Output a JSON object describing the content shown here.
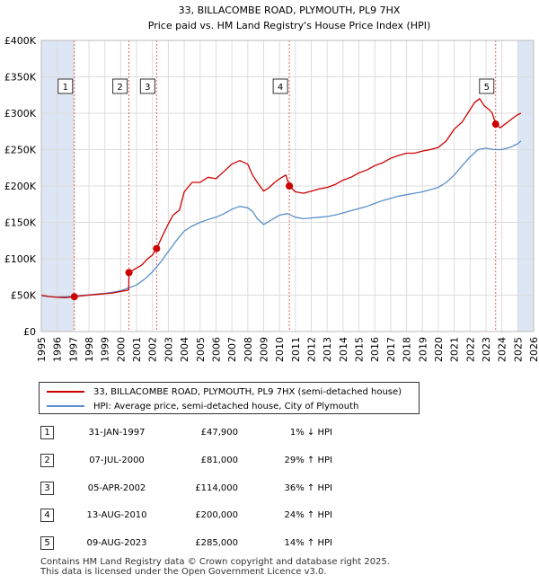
{
  "title_line1": "33, BILLACOMBE ROAD, PLYMOUTH, PL9 7HX",
  "title_line2": "Price paid vs. HM Land Registry's House Price Index (HPI)",
  "legend": {
    "property_label": "33, BILLACOMBE ROAD, PLYMOUTH, PL9 7HX (semi-detached house)",
    "hpi_label": "HPI: Average price, semi-detached house, City of Plymouth"
  },
  "sales": [
    {
      "num": "1",
      "date": "31-JAN-1997",
      "price": "£47,900",
      "hpi": "1% ↓ HPI"
    },
    {
      "num": "2",
      "date": "07-JUL-2000",
      "price": "£81,000",
      "hpi": "29% ↑ HPI"
    },
    {
      "num": "3",
      "date": "05-APR-2002",
      "price": "£114,000",
      "hpi": "36% ↑ HPI"
    },
    {
      "num": "4",
      "date": "13-AUG-2010",
      "price": "£200,000",
      "hpi": "24% ↑ HPI"
    },
    {
      "num": "5",
      "date": "09-AUG-2023",
      "price": "£285,000",
      "hpi": "14% ↑ HPI"
    }
  ],
  "footer_line1": "Contains HM Land Registry data © Crown copyright and database right 2025.",
  "footer_line2": "This data is licensed under the Open Government Licence v3.0.",
  "colors": {
    "property": "#cc0000",
    "hpi": "#5b8fc9",
    "band": "#dde6f4",
    "grid": "#dddddd"
  },
  "chart_data": {
    "type": "line",
    "title": "33, BILLACOMBE ROAD, PLYMOUTH, PL9 7HX — Price paid vs. HM Land Registry's House Price Index (HPI)",
    "xlim": [
      1995,
      2026
    ],
    "ylim": [
      0,
      400000
    ],
    "x_ticks": [
      1995,
      1996,
      1997,
      1998,
      1999,
      2000,
      2001,
      2002,
      2003,
      2004,
      2005,
      2006,
      2007,
      2008,
      2009,
      2010,
      2011,
      2012,
      2013,
      2014,
      2015,
      2016,
      2017,
      2018,
      2019,
      2020,
      2021,
      2022,
      2023,
      2024,
      2025,
      2026
    ],
    "y_ticks": [
      0,
      50000,
      100000,
      150000,
      200000,
      250000,
      300000,
      350000,
      400000
    ],
    "y_tick_labels": [
      "£0",
      "£50K",
      "£100K",
      "£150K",
      "£200K",
      "£250K",
      "£300K",
      "£350K",
      "£400K"
    ],
    "highlight_bands": [
      [
        1995,
        1997.08
      ],
      [
        2025.0,
        2026
      ]
    ],
    "sale_points": [
      {
        "label": "1",
        "x": 1997.08,
        "y": 47900
      },
      {
        "label": "2",
        "x": 2000.52,
        "y": 81000
      },
      {
        "label": "3",
        "x": 2002.26,
        "y": 114000
      },
      {
        "label": "4",
        "x": 2010.62,
        "y": 200000
      },
      {
        "label": "5",
        "x": 2023.61,
        "y": 285000
      }
    ],
    "series": [
      {
        "name": "33, BILLACOMBE ROAD, PLYMOUTH, PL9 7HX (semi-detached house)",
        "x": [
          1995.0,
          1995.5,
          1996.0,
          1996.5,
          1997.08,
          1997.5,
          1998.0,
          1998.5,
          1999.0,
          1999.5,
          2000.0,
          2000.5,
          2000.52,
          2000.9,
          2001.3,
          2001.7,
          2002.0,
          2002.26,
          2002.6,
          2003.0,
          2003.3,
          2003.7,
          2004.0,
          2004.5,
          2005.0,
          2005.5,
          2006.0,
          2006.5,
          2007.0,
          2007.5,
          2008.0,
          2008.3,
          2008.6,
          2009.0,
          2009.3,
          2009.7,
          2010.0,
          2010.4,
          2010.62,
          2011.0,
          2011.5,
          2012.0,
          2012.5,
          2013.0,
          2013.5,
          2014.0,
          2014.5,
          2015.0,
          2015.5,
          2016.0,
          2016.5,
          2017.0,
          2017.5,
          2018.0,
          2018.5,
          2019.0,
          2019.5,
          2020.0,
          2020.5,
          2021.0,
          2021.5,
          2022.0,
          2022.3,
          2022.6,
          2022.9,
          2023.2,
          2023.4,
          2023.61,
          2023.9,
          2024.2,
          2024.5,
          2024.8,
          2025.0,
          2025.2
        ],
        "y": [
          50000,
          48000,
          47000,
          46500,
          47900,
          49000,
          50000,
          51000,
          52000,
          53000,
          55000,
          57000,
          81000,
          86000,
          91000,
          100000,
          105000,
          114000,
          130000,
          148000,
          160000,
          167000,
          192000,
          205000,
          205000,
          212000,
          210000,
          220000,
          230000,
          235000,
          230000,
          215000,
          205000,
          193000,
          197000,
          205000,
          210000,
          215000,
          200000,
          192000,
          190000,
          193000,
          196000,
          198000,
          202000,
          208000,
          212000,
          218000,
          222000,
          228000,
          232000,
          238000,
          242000,
          245000,
          245000,
          248000,
          250000,
          253000,
          262000,
          278000,
          288000,
          305000,
          315000,
          320000,
          310000,
          305000,
          300000,
          285000,
          280000,
          285000,
          290000,
          295000,
          298000,
          300000
        ]
      },
      {
        "name": "HPI: Average price, semi-detached house, City of Plymouth",
        "x": [
          1995.0,
          1995.5,
          1996.0,
          1996.5,
          1997.08,
          1997.5,
          1998.0,
          1998.5,
          1999.0,
          1999.5,
          2000.0,
          2000.5,
          2001.0,
          2001.5,
          2002.0,
          2002.5,
          2003.0,
          2003.5,
          2004.0,
          2004.5,
          2005.0,
          2005.5,
          2006.0,
          2006.5,
          2007.0,
          2007.5,
          2008.0,
          2008.3,
          2008.6,
          2009.0,
          2009.3,
          2009.7,
          2010.0,
          2010.5,
          2011.0,
          2011.5,
          2012.0,
          2012.5,
          2013.0,
          2013.5,
          2014.0,
          2014.5,
          2015.0,
          2015.5,
          2016.0,
          2016.5,
          2017.0,
          2017.5,
          2018.0,
          2018.5,
          2019.0,
          2019.5,
          2020.0,
          2020.5,
          2021.0,
          2021.5,
          2022.0,
          2022.5,
          2023.0,
          2023.5,
          2024.0,
          2024.5,
          2025.0,
          2025.2
        ],
        "y": [
          49000,
          48000,
          47500,
          47800,
          48500,
          49500,
          50500,
          51500,
          52500,
          54000,
          56000,
          60000,
          64000,
          72000,
          82000,
          95000,
          110000,
          125000,
          138000,
          145000,
          150000,
          154000,
          157000,
          162000,
          168000,
          172000,
          170000,
          165000,
          155000,
          147000,
          151000,
          156000,
          160000,
          162000,
          157000,
          155000,
          156000,
          157000,
          158000,
          160000,
          163000,
          166000,
          169000,
          172000,
          176000,
          180000,
          183000,
          186000,
          188000,
          190000,
          192000,
          195000,
          198000,
          205000,
          215000,
          228000,
          240000,
          250000,
          252000,
          250000,
          250000,
          253000,
          258000,
          262000
        ]
      }
    ]
  }
}
